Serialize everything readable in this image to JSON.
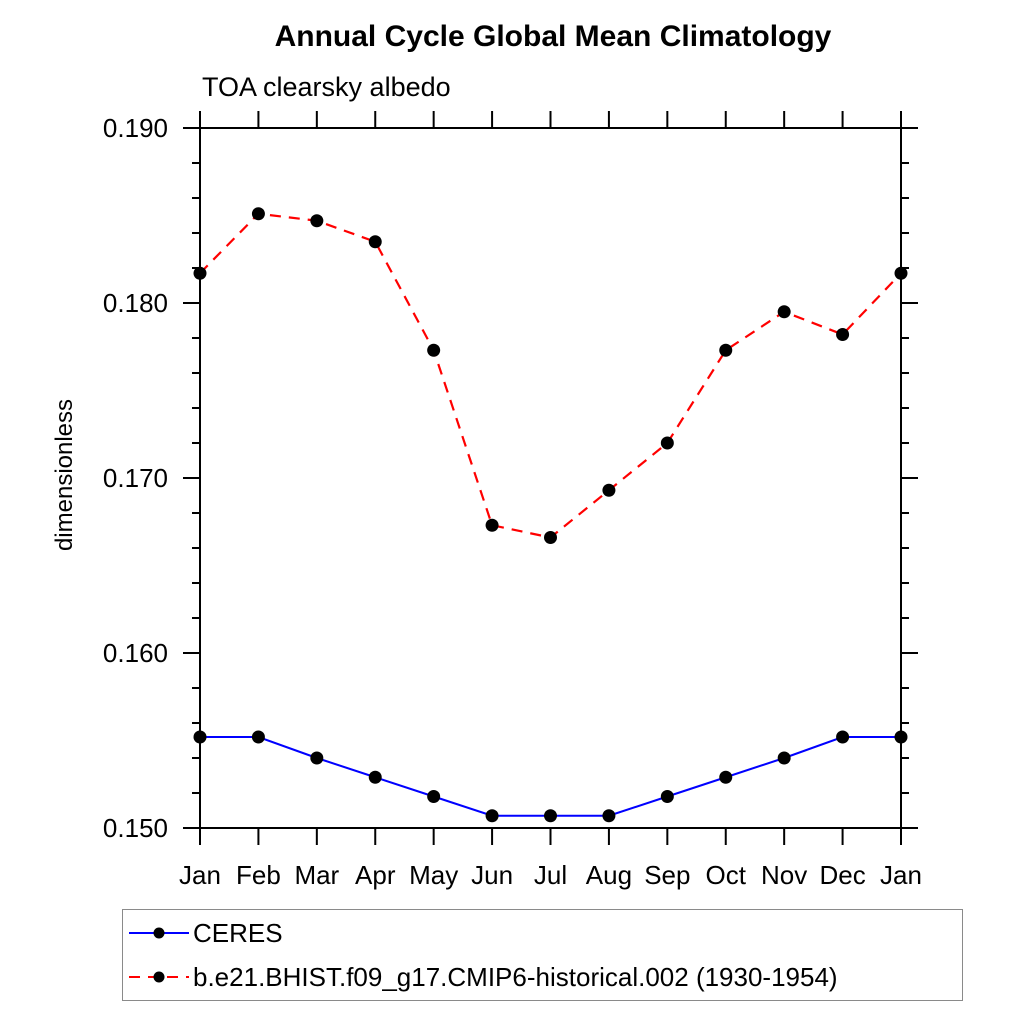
{
  "header": {
    "title": "Annual Cycle Global Mean Climatology",
    "subtitle": "TOA clearsky albedo"
  },
  "axes": {
    "ylabel": "dimensionless"
  },
  "colors": {
    "ceres_line": "#0000ff",
    "model_line": "#ff0000",
    "marker": "#000000",
    "axis": "#000000",
    "legend_border": "#8a8a8a"
  },
  "legend": [
    {
      "label": "CERES",
      "color": "#0000ff",
      "style": "solid",
      "marker": "filled-circle"
    },
    {
      "label": "b.e21.BHIST.f09_g17.CMIP6-historical.002 (1930-1954)",
      "color": "#ff0000",
      "style": "dashed",
      "marker": "filled-circle"
    }
  ],
  "chart_data": {
    "type": "line",
    "title": "Annual Cycle Global Mean Climatology",
    "subtitle": "TOA clearsky albedo",
    "ylabel": "dimensionless",
    "xlabel": "",
    "categories": [
      "Jan",
      "Feb",
      "Mar",
      "Apr",
      "May",
      "Jun",
      "Jul",
      "Aug",
      "Sep",
      "Oct",
      "Nov",
      "Dec",
      "Jan"
    ],
    "series": [
      {
        "name": "CERES",
        "color": "#0000ff",
        "line_style": "solid",
        "marker": "filled-circle",
        "marker_color": "#000000",
        "values": [
          0.1552,
          0.1552,
          0.154,
          0.1529,
          0.1518,
          0.1507,
          0.1507,
          0.1507,
          0.1518,
          0.1529,
          0.154,
          0.1552,
          0.1552
        ]
      },
      {
        "name": "b.e21.BHIST.f09_g17.CMIP6-historical.002 (1930-1954)",
        "color": "#ff0000",
        "line_style": "dashed",
        "marker": "filled-circle",
        "marker_color": "#000000",
        "values": [
          0.1817,
          0.1851,
          0.1847,
          0.1835,
          0.1773,
          0.1673,
          0.1666,
          0.1693,
          0.172,
          0.1773,
          0.1795,
          0.1782,
          0.1817
        ]
      }
    ],
    "ylim": [
      0.15,
      0.19
    ],
    "ytick_major_step": 0.01,
    "ytick_minor_step": 0.002,
    "ytick_labels": [
      "0.150",
      "0.160",
      "0.170",
      "0.180",
      "0.190"
    ],
    "grid": false,
    "legend_position": "bottom-left"
  }
}
